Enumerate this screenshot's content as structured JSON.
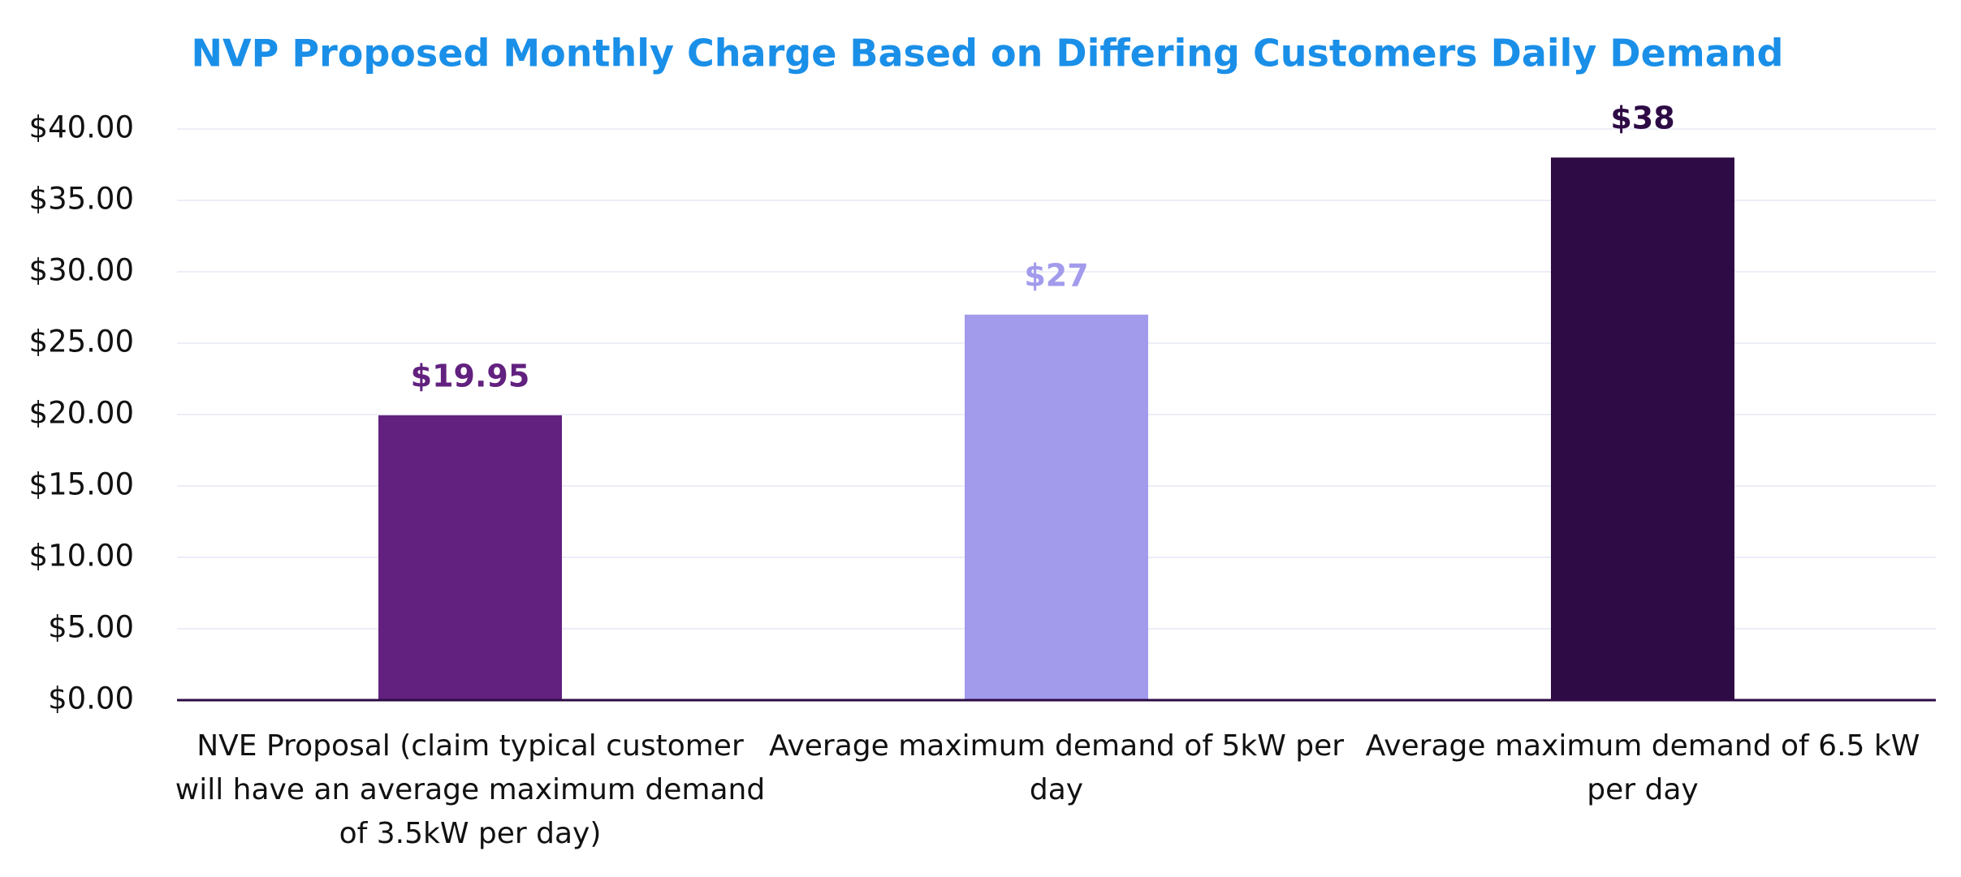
{
  "chart_data": {
    "type": "bar",
    "title": "NVP Proposed Monthly Charge Based on Differing Customers Daily Demand",
    "categories": [
      "NVE Proposal (claim typical customer will have an average maximum demand of 3.5kW per day)",
      "Average maximum demand of 5kW per day",
      "Average maximum demand of 6.5 kW per day"
    ],
    "values": [
      19.95,
      27,
      38
    ],
    "value_labels": [
      "$19.95",
      "$27",
      "$38"
    ],
    "colors": [
      "#62217f",
      "#a29bec",
      "#2e0b45"
    ],
    "ylim": [
      0,
      40
    ],
    "yticks": [
      {
        "value": 0,
        "label": "$0.00"
      },
      {
        "value": 5,
        "label": "$5.00"
      },
      {
        "value": 10,
        "label": "$10.00"
      },
      {
        "value": 15,
        "label": "$15.00"
      },
      {
        "value": 20,
        "label": "$20.00"
      },
      {
        "value": 25,
        "label": "$25.00"
      },
      {
        "value": 30,
        "label": "$30.00"
      },
      {
        "value": 35,
        "label": "$35.00"
      },
      {
        "value": 40,
        "label": "$40.00"
      }
    ],
    "grid": true
  }
}
